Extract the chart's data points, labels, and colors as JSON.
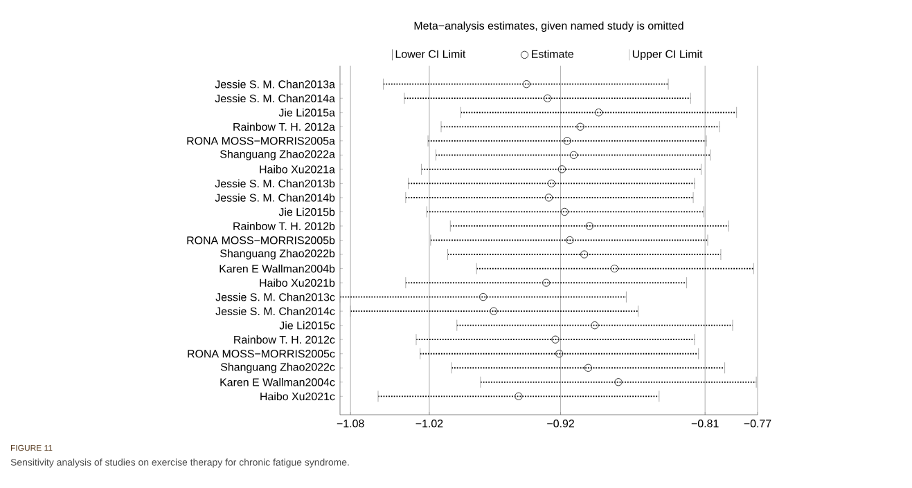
{
  "chart_data": {
    "type": "scatter",
    "orientation": "horizontal",
    "title": "Meta−analysis estimates, given named study is omitted",
    "categories": [
      "Jessie S. M. Chan2013a",
      "Jessie S. M. Chan2014a",
      "Jie Li2015a",
      "Rainbow T. H. 2012a",
      "RONA MOSS−MORRIS2005a",
      "Shanguang Zhao2022a",
      "Haibo Xu2021a",
      "Jessie S. M. Chan2013b",
      "Jessie S. M. Chan2014b",
      "Jie Li2015b",
      "Rainbow T. H. 2012b",
      "RONA MOSS−MORRIS2005b",
      "Shanguang Zhao2022b",
      "Karen E Wallman2004b",
      "Haibo Xu2021b",
      "Jessie S. M. Chan2013c",
      "Jessie S. M. Chan2014c",
      "Jie Li2015c",
      "Rainbow T. H. 2012c",
      "RONA MOSS−MORRIS2005c",
      "Shanguang Zhao2022c",
      "Karen E Wallman2004c",
      "Haibo Xu2021c"
    ],
    "series": [
      {
        "name": "Estimate",
        "color": "#333333",
        "marker": "circle",
        "values": [
          -0.946,
          -0.93,
          -0.891,
          -0.905,
          -0.915,
          -0.91,
          -0.919,
          -0.927,
          -0.929,
          -0.917,
          -0.898,
          -0.913,
          -0.902,
          -0.879,
          -0.931,
          -0.979,
          -0.971,
          -0.894,
          -0.924,
          -0.921,
          -0.899,
          -0.876,
          -0.952
        ],
        "errors": [
          [
            -1.055,
            -0.838
          ],
          [
            -1.039,
            -0.821
          ],
          [
            -0.996,
            -0.786
          ],
          [
            -1.011,
            -0.799
          ],
          [
            -1.021,
            -0.809
          ],
          [
            -1.015,
            -0.806
          ],
          [
            -1.026,
            -0.813
          ],
          [
            -1.036,
            -0.818
          ],
          [
            -1.038,
            -0.819
          ],
          [
            -1.022,
            -0.811
          ],
          [
            -1.004,
            -0.792
          ],
          [
            -1.019,
            -0.808
          ],
          [
            -1.006,
            -0.798
          ],
          [
            -0.984,
            -0.773
          ],
          [
            -1.038,
            -0.824
          ],
          [
            -1.088,
            -0.87
          ],
          [
            -1.08,
            -0.861
          ],
          [
            -0.999,
            -0.789
          ],
          [
            -1.03,
            -0.818
          ],
          [
            -1.027,
            -0.815
          ],
          [
            -1.003,
            -0.795
          ],
          [
            -0.981,
            -0.771
          ],
          [
            -1.059,
            -0.845
          ]
        ]
      }
    ],
    "line_style": "dotted",
    "xlim": [
      -1.088,
      -0.77
    ],
    "xticks": [
      {
        "value": -1.08,
        "label": "−1.08"
      },
      {
        "value": -1.02,
        "label": "−1.02"
      },
      {
        "value": -0.92,
        "label": "−0.92"
      },
      {
        "value": -0.81,
        "label": "−0.81"
      },
      {
        "value": -0.77,
        "label": "−0.77"
      }
    ],
    "grid": "x",
    "legend": "top",
    "annotations": [
      "Lower CI Limit",
      "Upper CI Limit",
      "FIGURE 11",
      "Sensitivity analysis of studies on exercise therapy for chronic fatigue syndrome."
    ]
  }
}
